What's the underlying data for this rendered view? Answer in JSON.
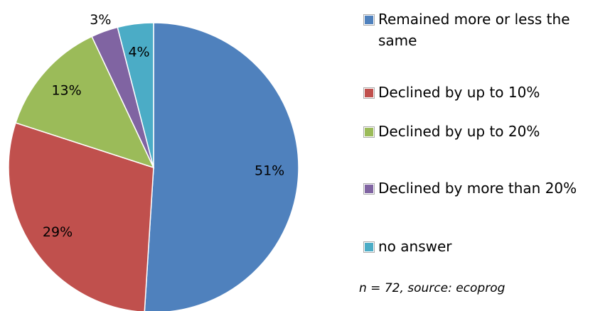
{
  "chart_data": {
    "type": "pie",
    "categories": [
      "Remained more or less the same",
      "Declined by up to 10%",
      "Declined by up to 20%",
      "Declined by more than 20%",
      "no answer"
    ],
    "values": [
      51,
      29,
      13,
      3,
      4
    ],
    "value_labels": [
      "51%",
      "29%",
      "13%",
      "3%",
      "4%"
    ],
    "colors": [
      "#4f81bd",
      "#c0504d",
      "#9bbb59",
      "#8064a2",
      "#4bacc6"
    ],
    "annotation": "n = 72, source:  ecoprog"
  }
}
